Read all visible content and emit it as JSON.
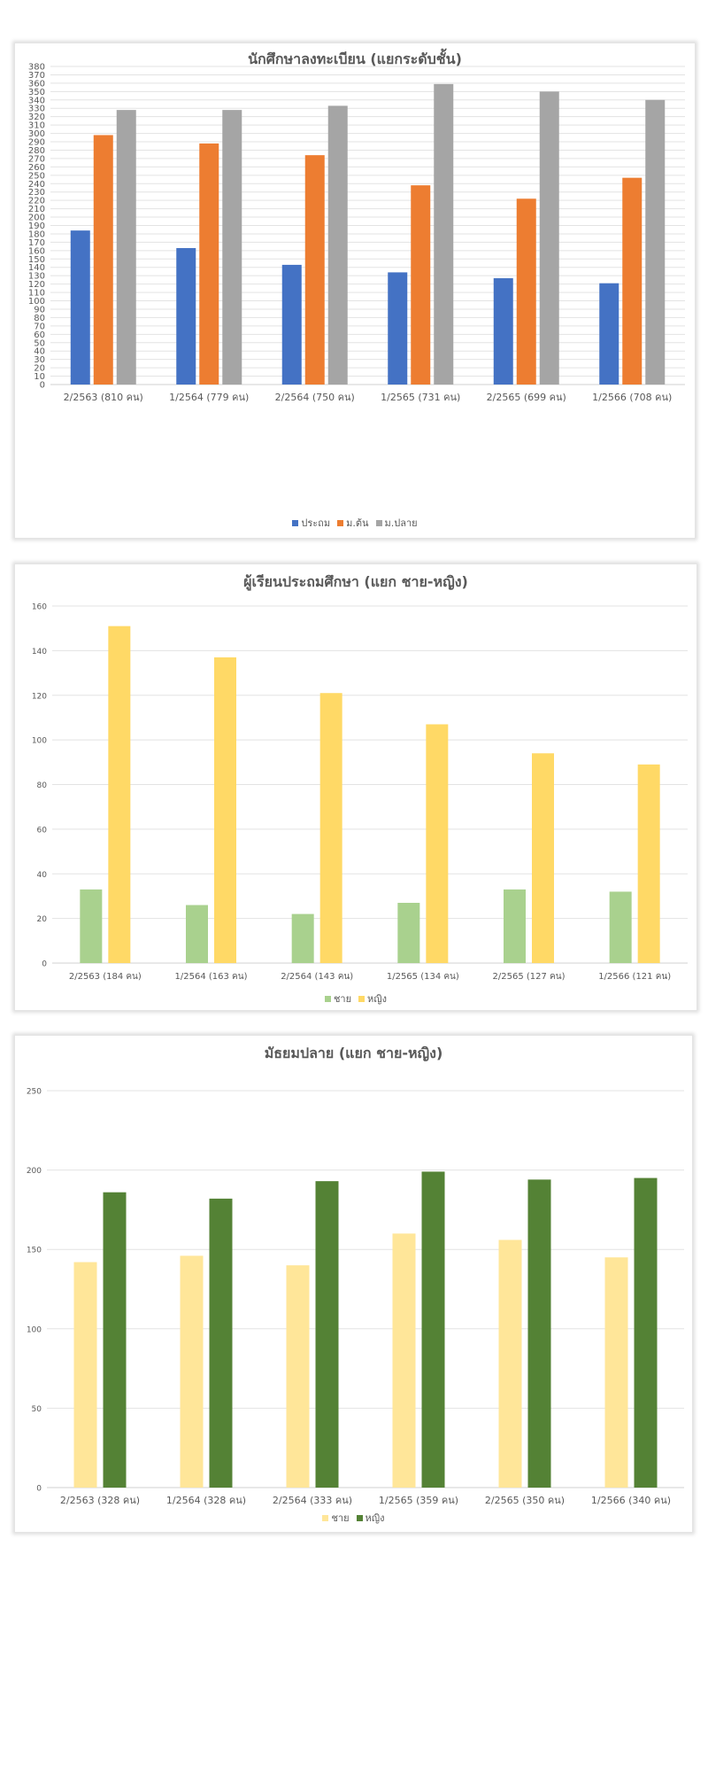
{
  "chart_data": [
    {
      "type": "bar",
      "title": "นักศึกษาลงทะเบียน (แยกระดับชั้น)",
      "xlabel": "",
      "ylabel": "",
      "ylim": [
        0,
        380
      ],
      "ytick_step": 10,
      "grid": true,
      "legend_position": "bottom",
      "categories": [
        "2/2563 (810 คน)",
        "1/2564 (779 คน)",
        "2/2564 (750 คน)",
        "1/2565 (731 คน)",
        "2/2565 (699 คน)",
        "1/2566 (708 คน)"
      ],
      "series": [
        {
          "name": "ประถม",
          "color": "#4472C4",
          "values": [
            184,
            163,
            143,
            134,
            127,
            121
          ]
        },
        {
          "name": "ม.ต้น",
          "color": "#ED7D31",
          "values": [
            298,
            288,
            274,
            238,
            222,
            247
          ]
        },
        {
          "name": "ม.ปลาย",
          "color": "#A5A5A5",
          "values": [
            328,
            328,
            333,
            359,
            350,
            340
          ]
        }
      ]
    },
    {
      "type": "bar",
      "title": "ผู้เรียนประถมศึกษา (แยก ชาย-หญิง)",
      "xlabel": "",
      "ylabel": "",
      "ylim": [
        0,
        160
      ],
      "ytick_step": 20,
      "grid": true,
      "legend_position": "bottom",
      "categories": [
        "2/2563 (184 คน)",
        "1/2564 (163 คน)",
        "2/2564 (143 คน)",
        "1/2565 (134 คน)",
        "2/2565 (127 คน)",
        "1/2566 (121 คน)"
      ],
      "series": [
        {
          "name": "ชาย",
          "color": "#A9D18E",
          "values": [
            33,
            26,
            22,
            27,
            33,
            32
          ]
        },
        {
          "name": "หญิง",
          "color": "#FFD966",
          "values": [
            151,
            137,
            121,
            107,
            94,
            89
          ]
        }
      ]
    },
    {
      "type": "bar",
      "title": "มัธยมปลาย (แยก ชาย-หญิง)",
      "xlabel": "",
      "ylabel": "",
      "ylim": [
        0,
        250
      ],
      "ytick_step": 50,
      "grid": true,
      "legend_position": "bottom",
      "categories": [
        "2/2563 (328 คน)",
        "1/2564 (328 คน)",
        "2/2564 (333 คน)",
        "1/2565 (359 คน)",
        "2/2565 (350 คน)",
        "1/2566 (340 คน)"
      ],
      "series": [
        {
          "name": "ชาย",
          "color": "#FFE699",
          "values": [
            142,
            146,
            140,
            160,
            156,
            145
          ]
        },
        {
          "name": "หญิง",
          "color": "#548235",
          "values": [
            186,
            182,
            193,
            199,
            194,
            195
          ]
        }
      ]
    }
  ]
}
